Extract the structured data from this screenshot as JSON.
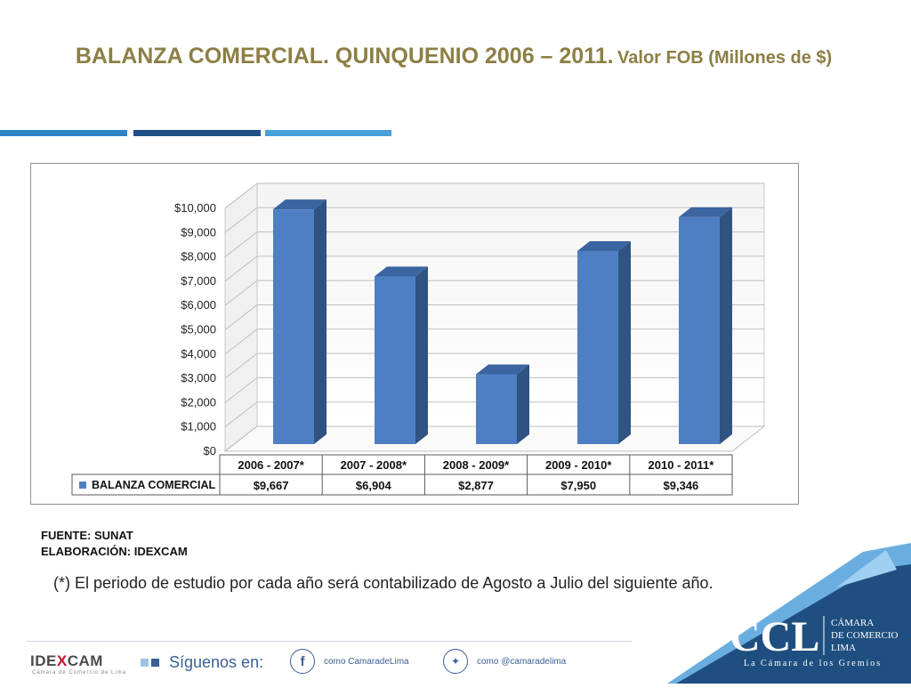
{
  "header": {
    "title_main": "BALANZA COMERCIAL. QUINQUENIO 2006 – 2011.",
    "title_sub": "Valor FOB (Millones de $)"
  },
  "colors": {
    "title": "#8c7f45",
    "bar_front": "#4f7fc3",
    "bar_side": "#2f5382",
    "bar_top": "#3a65a0",
    "rule_1": "#2f84c6",
    "rule_2": "#1e4f86",
    "rule_3": "#4aa0d8",
    "ccl_dark": "#1f4f80",
    "ccl_light": "#6aaee0"
  },
  "chart_data": {
    "type": "bar",
    "categories": [
      "2006 - 2007*",
      "2007 - 2008*",
      "2008 - 2009*",
      "2009 - 2010*",
      "2010 - 2011*"
    ],
    "series": [
      {
        "name": "BALANZA COMERCIAL",
        "values": [
          9667,
          6904,
          2877,
          7950,
          9346
        ]
      }
    ],
    "value_labels": [
      "$9,667",
      "$6,904",
      "$2,877",
      "$7,950",
      "$9,346"
    ],
    "y_ticks": [
      "$0",
      "$1,000",
      "$2,000",
      "$3,000",
      "$4,000",
      "$5,000",
      "$6,000",
      "$7,000",
      "$8,000",
      "$9,000",
      "$10,000"
    ],
    "ylim": [
      0,
      10000
    ],
    "grid": true,
    "legend": "data-table-left",
    "style": "3d-column-with-data-table"
  },
  "notes": {
    "source": "FUENTE: SUNAT",
    "prepared_by": "ELABORACIÓN: IDEXCAM",
    "footnote": "(*) El periodo de estudio por cada año será contabilizado de Agosto a Julio del siguiente año."
  },
  "footer": {
    "idexcam_logo": "IDEXCAM",
    "idexcam_logo_part1": "IDE",
    "idexcam_logo_part2": "X",
    "idexcam_logo_part3": "CAM",
    "idexcam_sub": "Cámara de Comercio de Lima",
    "follow_label": "Síguenos en:",
    "facebook_label": "como CamaradeLima",
    "twitter_label": "como @camaradelima",
    "ccl_logo": "CCL",
    "ccl_name_1": "CÁMARA",
    "ccl_name_2": "DE COMERCIO",
    "ccl_name_3": "LIMA",
    "ccl_tagline": "La Cámara de los Gremios"
  }
}
